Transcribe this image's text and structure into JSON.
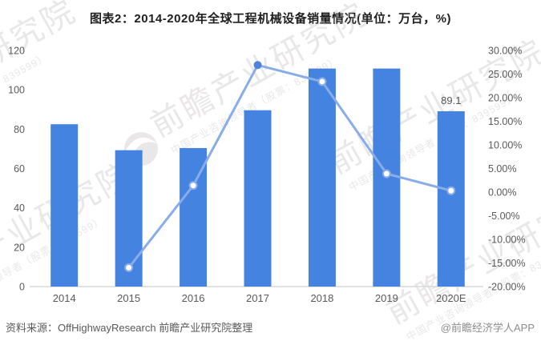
{
  "title": "图表2：2014-2020年全球工程机械设备销量情况(单位：万台，%)",
  "footer": {
    "source": "资料来源：OffHighwayResearch 前瞻产业研究院整理",
    "credit": "@前瞻经济学人APP"
  },
  "watermark": {
    "brand": "前瞻产业研究院",
    "tagline": "中国产业咨询领导者（股票：839599）"
  },
  "chart_data": {
    "type": "bar",
    "title": "图表2：2014-2020年全球工程机械设备销量情况(单位：万台，%)",
    "categories": [
      "2014",
      "2015",
      "2016",
      "2017",
      "2018",
      "2019",
      "2020E"
    ],
    "series": [
      {
        "role": "bar",
        "axis": "left",
        "values": [
          82.5,
          69.3,
          70.4,
          89.6,
          110.8,
          110.8,
          89.1
        ]
      },
      {
        "role": "line",
        "axis": "right",
        "first_category": "2015",
        "values": [
          -16.0,
          1.4,
          26.9,
          23.4,
          3.9,
          0.3
        ]
      }
    ],
    "data_labels": [
      {
        "category": "2020E",
        "text": "89.1"
      }
    ],
    "left_axis": {
      "min": 0,
      "max": 120,
      "step": 20,
      "tick_labels": [
        "0",
        "20",
        "40",
        "60",
        "80",
        "100",
        "120"
      ]
    },
    "right_axis": {
      "min": -20,
      "max": 30,
      "step": 5,
      "tick_labels_top_down": [
        "30.00%",
        "25.00%",
        "20.00%",
        "15.00%",
        "10.00%",
        "5.00%",
        "0.00%",
        "-5.00%",
        "-10.00%",
        "-15.00%",
        "-20.00%"
      ]
    },
    "grid": false,
    "legend": "none",
    "colors": {
      "bar": "#4484E0",
      "line": "#88ACE9",
      "marker_fill": "#ffffff",
      "peak_marker": "#4E82DC",
      "axis_text": "#595959",
      "baseline": "#d9d9d9",
      "watermark": "#b5aeae"
    }
  }
}
